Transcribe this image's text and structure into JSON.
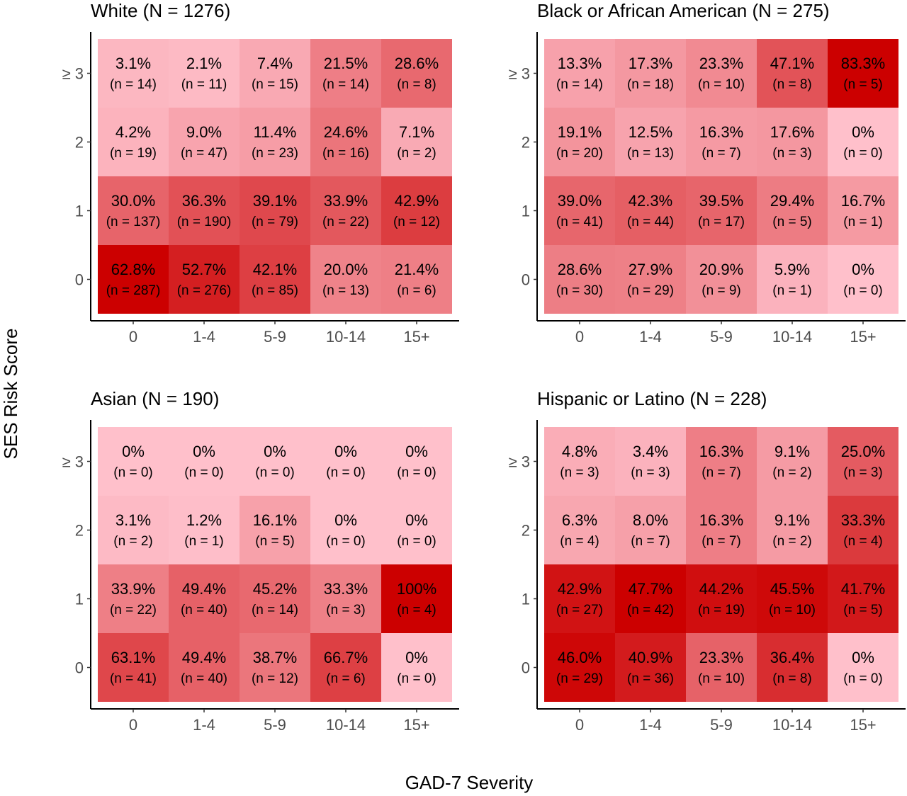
{
  "chart_data": {
    "type": "heatmap",
    "xlabel": "GAD-7 Severity",
    "ylabel": "SES Risk Score",
    "x_categories": [
      "0",
      "1-4",
      "5-9",
      "10-14",
      "15+"
    ],
    "y_categories": [
      "0",
      "1",
      "2",
      "≥ 3"
    ],
    "color_scale": {
      "low": "#ffc0cb",
      "high": "#cc0000"
    },
    "panels": [
      {
        "title": "White (N = 1276)",
        "rows": [
          {
            "y": "≥ 3",
            "pct": [
              3.1,
              2.1,
              7.4,
              21.5,
              28.6
            ],
            "labels": [
              "3.1%",
              "2.1%",
              "7.4%",
              "21.5%",
              "28.6%"
            ],
            "n": [
              "(n = 14)",
              "(n = 11)",
              "(n = 15)",
              "(n = 14)",
              "(n = 8)"
            ]
          },
          {
            "y": "2",
            "pct": [
              4.2,
              9.0,
              11.4,
              24.6,
              7.1
            ],
            "labels": [
              "4.2%",
              "9.0%",
              "11.4%",
              "24.6%",
              "7.1%"
            ],
            "n": [
              "(n = 19)",
              "(n = 47)",
              "(n = 23)",
              "(n = 16)",
              "(n = 2)"
            ]
          },
          {
            "y": "1",
            "pct": [
              30.0,
              36.3,
              39.1,
              33.9,
              42.9
            ],
            "labels": [
              "30.0%",
              "36.3%",
              "39.1%",
              "33.9%",
              "42.9%"
            ],
            "n": [
              "(n = 137)",
              "(n = 190)",
              "(n = 79)",
              "(n = 22)",
              "(n = 12)"
            ]
          },
          {
            "y": "0",
            "pct": [
              62.8,
              52.7,
              42.1,
              20.0,
              21.4
            ],
            "labels": [
              "62.8%",
              "52.7%",
              "42.1%",
              "20.0%",
              "21.4%"
            ],
            "n": [
              "(n = 287)",
              "(n = 276)",
              "(n = 85)",
              "(n = 13)",
              "(n = 6)"
            ]
          }
        ]
      },
      {
        "title": "Black or African American (N = 275)",
        "rows": [
          {
            "y": "≥ 3",
            "pct": [
              13.3,
              17.3,
              23.3,
              47.1,
              83.3
            ],
            "labels": [
              "13.3%",
              "17.3%",
              "23.3%",
              "47.1%",
              "83.3%"
            ],
            "n": [
              "(n = 14)",
              "(n = 18)",
              "(n = 10)",
              "(n = 8)",
              "(n = 5)"
            ]
          },
          {
            "y": "2",
            "pct": [
              19.1,
              12.5,
              16.3,
              17.6,
              0
            ],
            "labels": [
              "19.1%",
              "12.5%",
              "16.3%",
              "17.6%",
              "0%"
            ],
            "n": [
              "(n = 20)",
              "(n = 13)",
              "(n = 7)",
              "(n = 3)",
              "(n = 0)"
            ]
          },
          {
            "y": "1",
            "pct": [
              39.0,
              42.3,
              39.5,
              29.4,
              16.7
            ],
            "labels": [
              "39.0%",
              "42.3%",
              "39.5%",
              "29.4%",
              "16.7%"
            ],
            "n": [
              "(n = 41)",
              "(n = 44)",
              "(n = 17)",
              "(n = 5)",
              "(n = 1)"
            ]
          },
          {
            "y": "0",
            "pct": [
              28.6,
              27.9,
              20.9,
              5.9,
              0
            ],
            "labels": [
              "28.6%",
              "27.9%",
              "20.9%",
              "5.9%",
              "0%"
            ],
            "n": [
              "(n = 30)",
              "(n = 29)",
              "(n = 9)",
              "(n = 1)",
              "(n = 0)"
            ]
          }
        ]
      },
      {
        "title": "Asian (N = 190)",
        "rows": [
          {
            "y": "≥ 3",
            "pct": [
              0,
              0,
              0,
              0,
              0
            ],
            "labels": [
              "0%",
              "0%",
              "0%",
              "0%",
              "0%"
            ],
            "n": [
              "(n = 0)",
              "(n = 0)",
              "(n = 0)",
              "(n = 0)",
              "(n = 0)"
            ]
          },
          {
            "y": "2",
            "pct": [
              3.1,
              1.2,
              16.1,
              0,
              0
            ],
            "labels": [
              "3.1%",
              "1.2%",
              "16.1%",
              "0%",
              "0%"
            ],
            "n": [
              "(n = 2)",
              "(n = 1)",
              "(n = 5)",
              "(n = 0)",
              "(n = 0)"
            ]
          },
          {
            "y": "1",
            "pct": [
              33.9,
              49.4,
              45.2,
              33.3,
              100
            ],
            "labels": [
              "33.9%",
              "49.4%",
              "45.2%",
              "33.3%",
              "100%"
            ],
            "n": [
              "(n = 22)",
              "(n = 40)",
              "(n = 14)",
              "(n = 3)",
              "(n = 4)"
            ]
          },
          {
            "y": "0",
            "pct": [
              63.1,
              49.4,
              38.7,
              66.7,
              0
            ],
            "labels": [
              "63.1%",
              "49.4%",
              "38.7%",
              "66.7%",
              "0%"
            ],
            "n": [
              "(n = 41)",
              "(n = 40)",
              "(n = 12)",
              "(n = 6)",
              "(n = 0)"
            ]
          }
        ]
      },
      {
        "title": "Hispanic or Latino (N = 228)",
        "rows": [
          {
            "y": "≥ 3",
            "pct": [
              4.8,
              3.4,
              16.3,
              9.1,
              25.0
            ],
            "labels": [
              "4.8%",
              "3.4%",
              "16.3%",
              "9.1%",
              "25.0%"
            ],
            "n": [
              "(n = 3)",
              "(n = 3)",
              "(n = 7)",
              "(n = 2)",
              "(n = 3)"
            ]
          },
          {
            "y": "2",
            "pct": [
              6.3,
              8.0,
              16.3,
              9.1,
              33.3
            ],
            "labels": [
              "6.3%",
              "8.0%",
              "16.3%",
              "9.1%",
              "33.3%"
            ],
            "n": [
              "(n = 4)",
              "(n = 7)",
              "(n = 7)",
              "(n = 2)",
              "(n = 4)"
            ]
          },
          {
            "y": "1",
            "pct": [
              42.9,
              47.7,
              44.2,
              45.5,
              41.7
            ],
            "labels": [
              "42.9%",
              "47.7%",
              "44.2%",
              "45.5%",
              "41.7%"
            ],
            "n": [
              "(n = 27)",
              "(n = 42)",
              "(n = 19)",
              "(n = 10)",
              "(n = 5)"
            ]
          },
          {
            "y": "0",
            "pct": [
              46.0,
              40.9,
              23.3,
              36.4,
              0
            ],
            "labels": [
              "46.0%",
              "40.9%",
              "23.3%",
              "36.4%",
              "0%"
            ],
            "n": [
              "(n = 29)",
              "(n = 36)",
              "(n = 10)",
              "(n = 8)",
              "(n = 0)"
            ]
          }
        ]
      }
    ]
  }
}
